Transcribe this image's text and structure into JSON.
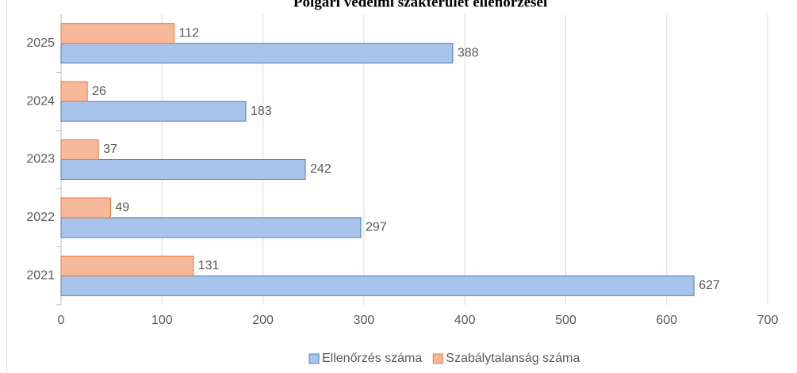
{
  "chart_data": {
    "type": "bar",
    "orientation": "horizontal",
    "title": "Polgári védelmi szakterület ellenőrzései",
    "categories": [
      "2021",
      "2022",
      "2023",
      "2024",
      "2025"
    ],
    "series": [
      {
        "name": "Ellenőrzés száma",
        "color": "#a9c4eb",
        "values": [
          627,
          297,
          242,
          183,
          388
        ]
      },
      {
        "name": "Szabálytalanság száma",
        "color": "#f8b89a",
        "values": [
          131,
          49,
          37,
          26,
          112
        ]
      }
    ],
    "xlim": [
      0,
      700
    ],
    "xticks": [
      0,
      100,
      200,
      300,
      400,
      500,
      600,
      700
    ],
    "grid": true,
    "legend": "bottom"
  }
}
